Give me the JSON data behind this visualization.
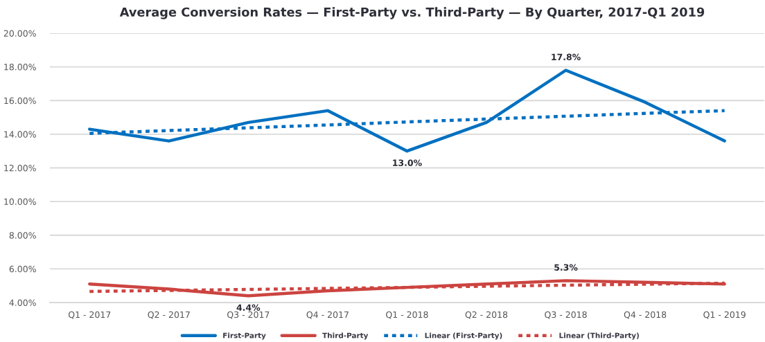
{
  "chart_data": {
    "type": "line",
    "title": "Average Conversion Rates — First-Party vs. Third-Party — By Quarter, 2017-Q1 2019",
    "categories": [
      "Q1 - 2017",
      "Q2 - 2017",
      "Q3 - 2017",
      "Q4 - 2017",
      "Q1 - 2018",
      "Q2 - 2018",
      "Q3 - 2018",
      "Q4 - 2018",
      "Q1 - 2019"
    ],
    "series": [
      {
        "name": "First-Party",
        "color": "#0070c0",
        "values": [
          14.3,
          13.6,
          14.7,
          15.4,
          13.0,
          14.7,
          17.8,
          15.9,
          13.6
        ],
        "value_labels": [
          null,
          null,
          null,
          null,
          "13.0%",
          null,
          "17.8%",
          null,
          null
        ]
      },
      {
        "name": "Third-Party",
        "color": "#cc4440",
        "values": [
          5.1,
          4.8,
          4.4,
          4.7,
          4.9,
          5.1,
          5.3,
          5.2,
          5.1
        ],
        "value_labels": [
          null,
          null,
          "4.4%",
          null,
          null,
          null,
          "5.3%",
          null,
          null
        ]
      },
      {
        "name": "Linear (First-Party)",
        "color": "#0070c0",
        "line_style": "dotted",
        "values": [
          14.05,
          14.22,
          14.38,
          14.55,
          14.73,
          14.9,
          15.07,
          15.24,
          15.4
        ]
      },
      {
        "name": "Linear (Third-Party)",
        "color": "#cc4440",
        "line_style": "dotted",
        "values": [
          4.66,
          4.72,
          4.78,
          4.84,
          4.9,
          4.97,
          5.03,
          5.09,
          5.15
        ]
      }
    ],
    "ylim": [
      4,
      20
    ],
    "yticks": [
      {
        "value": 4,
        "label": "4.00%"
      },
      {
        "value": 6,
        "label": "6.00%"
      },
      {
        "value": 8,
        "label": "8.00%"
      },
      {
        "value": 10,
        "label": "10.00%"
      },
      {
        "value": 12,
        "label": "12.00%"
      },
      {
        "value": 14,
        "label": "14.00%"
      },
      {
        "value": 16,
        "label": "16.00%"
      },
      {
        "value": 18,
        "label": "18.00%"
      },
      {
        "value": 20,
        "label": "20.00%"
      }
    ],
    "grid": "y",
    "legend": "bottom",
    "line_style": "solid"
  }
}
